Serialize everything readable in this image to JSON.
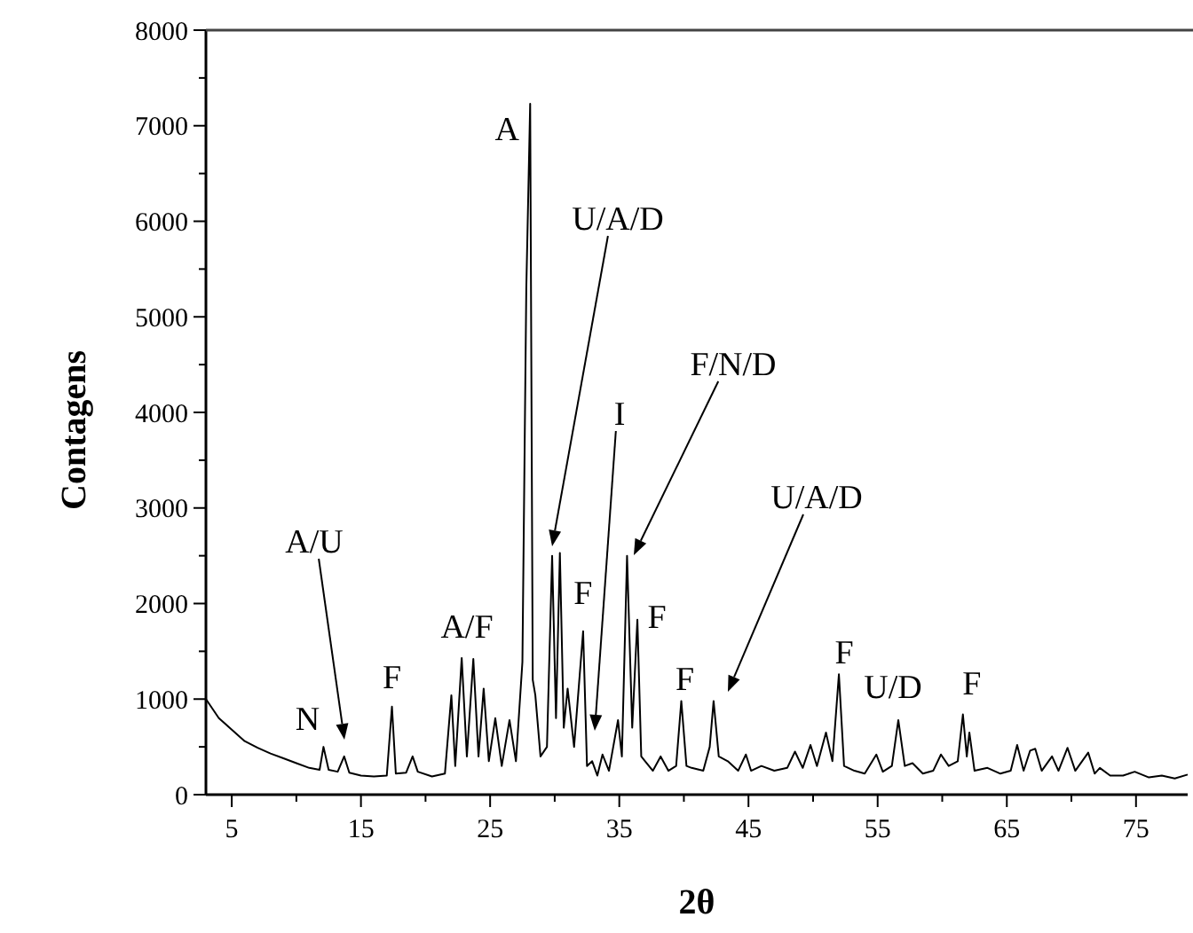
{
  "chart_data": {
    "type": "line",
    "xlabel": "2θ",
    "ylabel": "Contagens",
    "xlim": [
      3,
      79
    ],
    "ylim": [
      0,
      8000
    ],
    "xticks": [
      5,
      {
        "value": 10,
        "label": null
      },
      15,
      {
        "value": 20,
        "label": null
      },
      25,
      {
        "value": 30,
        "label": null
      },
      35,
      {
        "value": 40,
        "label": null
      },
      45,
      {
        "value": 50,
        "label": null
      },
      55,
      {
        "value": 60,
        "label": null
      },
      65,
      {
        "value": 70,
        "label": null
      },
      75
    ],
    "yticks": [
      0,
      {
        "value": 500,
        "label": null
      },
      1000,
      {
        "value": 1500,
        "label": null
      },
      2000,
      {
        "value": 2500,
        "label": null
      },
      3000,
      {
        "value": 3500,
        "label": null
      },
      4000,
      {
        "value": 4500,
        "label": null
      },
      5000,
      {
        "value": 5500,
        "label": null
      },
      6000,
      {
        "value": 6500,
        "label": null
      },
      7000,
      {
        "value": 7500,
        "label": null
      },
      8000
    ],
    "grid": false,
    "marker": "none",
    "line_style": "solid",
    "series": [
      {
        "color": "#000000",
        "x": [
          3,
          4,
          5,
          6,
          7,
          8,
          9,
          10,
          11,
          11.8,
          12.1,
          12.5,
          13.2,
          13.7,
          14.1,
          15,
          16,
          17,
          17.4,
          17.7,
          18.5,
          19.0,
          19.4,
          20.5,
          21.5,
          22.0,
          22.3,
          22.8,
          23.2,
          23.7,
          24.1,
          24.5,
          24.9,
          25.4,
          25.9,
          26.5,
          27.0,
          27.5,
          27.8,
          28.1,
          28.3,
          28.5,
          28.9,
          29.4,
          29.8,
          30.1,
          30.4,
          30.7,
          31.0,
          31.5,
          32.2,
          32.5,
          32.9,
          33.3,
          33.7,
          34.2,
          34.9,
          35.2,
          35.6,
          36.0,
          36.4,
          36.7,
          37.0,
          37.6,
          38.2,
          38.8,
          39.4,
          39.8,
          40.2,
          40.6,
          41.5,
          42.0,
          42.3,
          42.7,
          43.4,
          44.2,
          44.8,
          45.2,
          46,
          47,
          48,
          48.6,
          49.2,
          49.8,
          50.3,
          51.0,
          51.5,
          52.0,
          52.4,
          53.2,
          54,
          54.9,
          55.4,
          56.1,
          56.6,
          57.1,
          57.7,
          58.5,
          59.3,
          59.9,
          60.5,
          61.2,
          61.6,
          61.9,
          62.1,
          62.5,
          63.5,
          64.5,
          65.3,
          65.8,
          66.3,
          66.8,
          67.2,
          67.7,
          68.5,
          69.0,
          69.7,
          70.3,
          71.3,
          71.8,
          72.2,
          73,
          74,
          74.9,
          76,
          77,
          78,
          79
        ],
        "values": [
          1000,
          800,
          680,
          560,
          490,
          430,
          380,
          330,
          280,
          260,
          500,
          260,
          240,
          400,
          230,
          200,
          190,
          200,
          920,
          220,
          230,
          400,
          240,
          190,
          220,
          1040,
          300,
          1430,
          400,
          1420,
          400,
          1110,
          350,
          800,
          300,
          780,
          350,
          1390,
          5290,
          7230,
          1200,
          1040,
          400,
          500,
          2500,
          800,
          2530,
          700,
          1110,
          500,
          1710,
          300,
          350,
          200,
          420,
          250,
          780,
          400,
          2500,
          700,
          1830,
          400,
          350,
          250,
          400,
          250,
          300,
          980,
          300,
          280,
          250,
          500,
          980,
          400,
          350,
          250,
          420,
          250,
          300,
          250,
          280,
          450,
          280,
          520,
          300,
          650,
          350,
          1260,
          300,
          250,
          220,
          420,
          240,
          300,
          780,
          300,
          330,
          220,
          250,
          420,
          300,
          350,
          840,
          400,
          650,
          250,
          280,
          220,
          250,
          520,
          250,
          460,
          480,
          250,
          400,
          250,
          490,
          250,
          440,
          220,
          280,
          200,
          200,
          240,
          180,
          200,
          170,
          210
        ]
      }
    ],
    "annotations": [
      {
        "text": "N",
        "x": 12.1,
        "y": 500
      },
      "A/U",
      {
        "text": "F",
        "x": 17.4,
        "y": 920
      },
      {
        "text": "A/F",
        "x": 23.2,
        "y": 1430
      },
      {
        "text": "A",
        "x": 28.1,
        "y": 7230
      },
      "U/A/D",
      {
        "text": "F",
        "x": 32.2,
        "y": 1710
      },
      "I",
      "F/N/D",
      {
        "text": "F",
        "x": 36.4,
        "y": 1830
      },
      {
        "text": "F",
        "x": 39.8,
        "y": 980
      },
      "U/A/D",
      {
        "text": "F",
        "x": 52.0,
        "y": 1260
      },
      {
        "text": "U/D",
        "x": 56.6,
        "y": 780
      },
      {
        "text": "F",
        "x": 61.6,
        "y": 840
      }
    ]
  }
}
